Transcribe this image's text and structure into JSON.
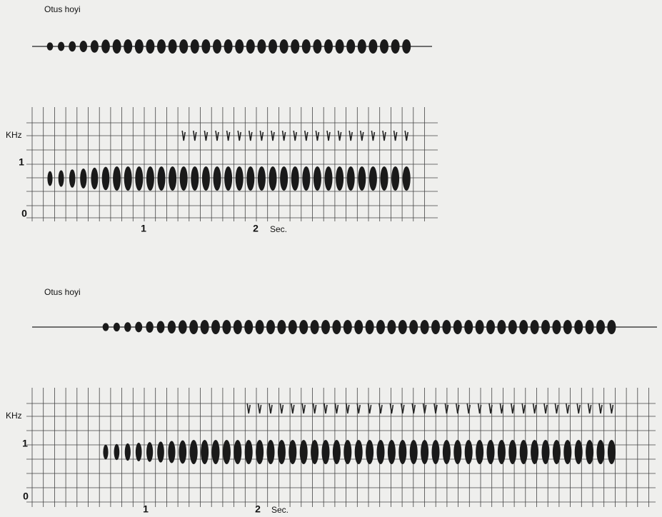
{
  "panels": [
    {
      "title": "Otus hoyi",
      "y_label": "KHz",
      "y_ticks": [
        "1",
        "0"
      ],
      "x_ticks": [
        "1",
        "2"
      ],
      "x_unit": "Sec."
    },
    {
      "title": "Otus hoyi",
      "y_label": "KHz",
      "y_ticks": [
        "1",
        "0"
      ],
      "x_ticks": [
        "1",
        "2"
      ],
      "x_unit": "Sec."
    }
  ]
}
